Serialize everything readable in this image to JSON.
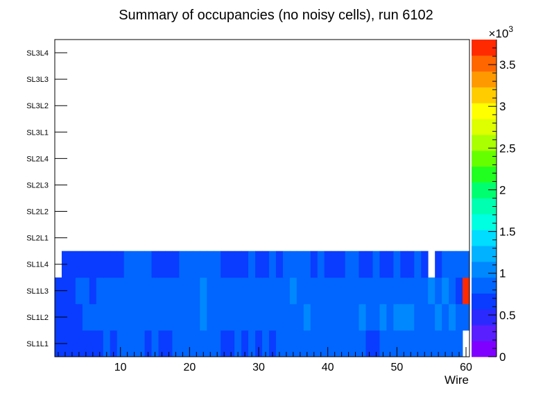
{
  "chart_data": {
    "type": "heatmap",
    "title": "Summary of occupancies (no noisy cells), run 6102",
    "xlabel": "Wire",
    "xlim": [
      0.5,
      60.5
    ],
    "x_ticks": [
      10,
      20,
      30,
      40,
      50,
      60
    ],
    "x_tick_labels": [
      "10",
      "20",
      "30",
      "40",
      "50",
      "60"
    ],
    "y_categories": [
      "SL1L1",
      "SL1L2",
      "SL1L3",
      "SL1L4",
      "SL2L1",
      "SL2L2",
      "SL2L3",
      "SL2L4",
      "SL3L1",
      "SL3L2",
      "SL3L3",
      "SL3L4"
    ],
    "z_range": [
      0,
      3800
    ],
    "z_multiplier_label": "×10",
    "z_multiplier_exp": "3",
    "z_ticks": [
      0,
      500,
      1000,
      1500,
      2000,
      2500,
      3000,
      3500
    ],
    "z_tick_labels": [
      "0",
      "0.5",
      "1",
      "1.5",
      "2",
      "2.5",
      "3",
      "3.5"
    ],
    "palette": [
      "#7f00ff",
      "#5a1fff",
      "#2a2aff",
      "#0a3cff",
      "#0066ff",
      "#0088ff",
      "#00b2ff",
      "#00ddff",
      "#00ffe0",
      "#00ffb0",
      "#00ff70",
      "#20ff20",
      "#66ff00",
      "#aaff00",
      "#ddff00",
      "#ffff00",
      "#ffcc00",
      "#ff9900",
      "#ff6600",
      "#ff2a00"
    ],
    "rows": [
      {
        "layer": "SL1L1",
        "values": [
          650,
          650,
          650,
          650,
          650,
          650,
          650,
          900,
          650,
          900,
          900,
          900,
          900,
          650,
          900,
          650,
          650,
          900,
          900,
          900,
          900,
          900,
          900,
          900,
          650,
          650,
          900,
          650,
          900,
          650,
          900,
          650,
          900,
          900,
          900,
          900,
          900,
          900,
          900,
          900,
          900,
          900,
          900,
          900,
          900,
          650,
          650,
          900,
          900,
          900,
          900,
          900,
          900,
          900,
          900,
          900,
          900,
          900,
          900,
          null
        ]
      },
      {
        "layer": "SL1L2",
        "values": [
          650,
          650,
          650,
          650,
          900,
          900,
          900,
          900,
          900,
          900,
          900,
          900,
          900,
          900,
          900,
          900,
          900,
          900,
          900,
          900,
          900,
          1050,
          900,
          900,
          900,
          900,
          900,
          900,
          900,
          900,
          900,
          900,
          900,
          900,
          900,
          900,
          1050,
          900,
          900,
          900,
          900,
          900,
          900,
          900,
          1050,
          900,
          900,
          1050,
          900,
          1050,
          1050,
          1050,
          900,
          900,
          900,
          1050,
          900,
          1050,
          900,
          900
        ]
      },
      {
        "layer": "SL1L3",
        "values": [
          650,
          650,
          650,
          900,
          900,
          650,
          900,
          900,
          900,
          900,
          900,
          900,
          900,
          900,
          900,
          900,
          900,
          900,
          900,
          900,
          900,
          1050,
          900,
          900,
          900,
          900,
          900,
          900,
          900,
          900,
          900,
          900,
          900,
          900,
          1050,
          900,
          900,
          900,
          900,
          900,
          900,
          900,
          900,
          900,
          900,
          900,
          900,
          900,
          900,
          900,
          900,
          900,
          900,
          900,
          1050,
          900,
          1050,
          900,
          650,
          3700
        ]
      },
      {
        "layer": "SL1L4",
        "values": [
          null,
          650,
          650,
          650,
          650,
          650,
          650,
          650,
          650,
          650,
          900,
          900,
          900,
          900,
          650,
          650,
          650,
          650,
          900,
          900,
          900,
          900,
          900,
          900,
          650,
          650,
          650,
          650,
          900,
          650,
          650,
          900,
          650,
          900,
          900,
          900,
          900,
          650,
          900,
          650,
          650,
          650,
          900,
          900,
          650,
          650,
          900,
          650,
          650,
          900,
          650,
          650,
          900,
          650,
          null,
          650,
          900,
          900,
          900,
          900
        ]
      },
      {
        "layer": "SL2L1",
        "values": []
      },
      {
        "layer": "SL2L2",
        "values": []
      },
      {
        "layer": "SL2L3",
        "values": []
      },
      {
        "layer": "SL2L4",
        "values": []
      },
      {
        "layer": "SL3L1",
        "values": []
      },
      {
        "layer": "SL3L2",
        "values": []
      },
      {
        "layer": "SL3L3",
        "values": []
      },
      {
        "layer": "SL3L4",
        "values": []
      }
    ]
  }
}
